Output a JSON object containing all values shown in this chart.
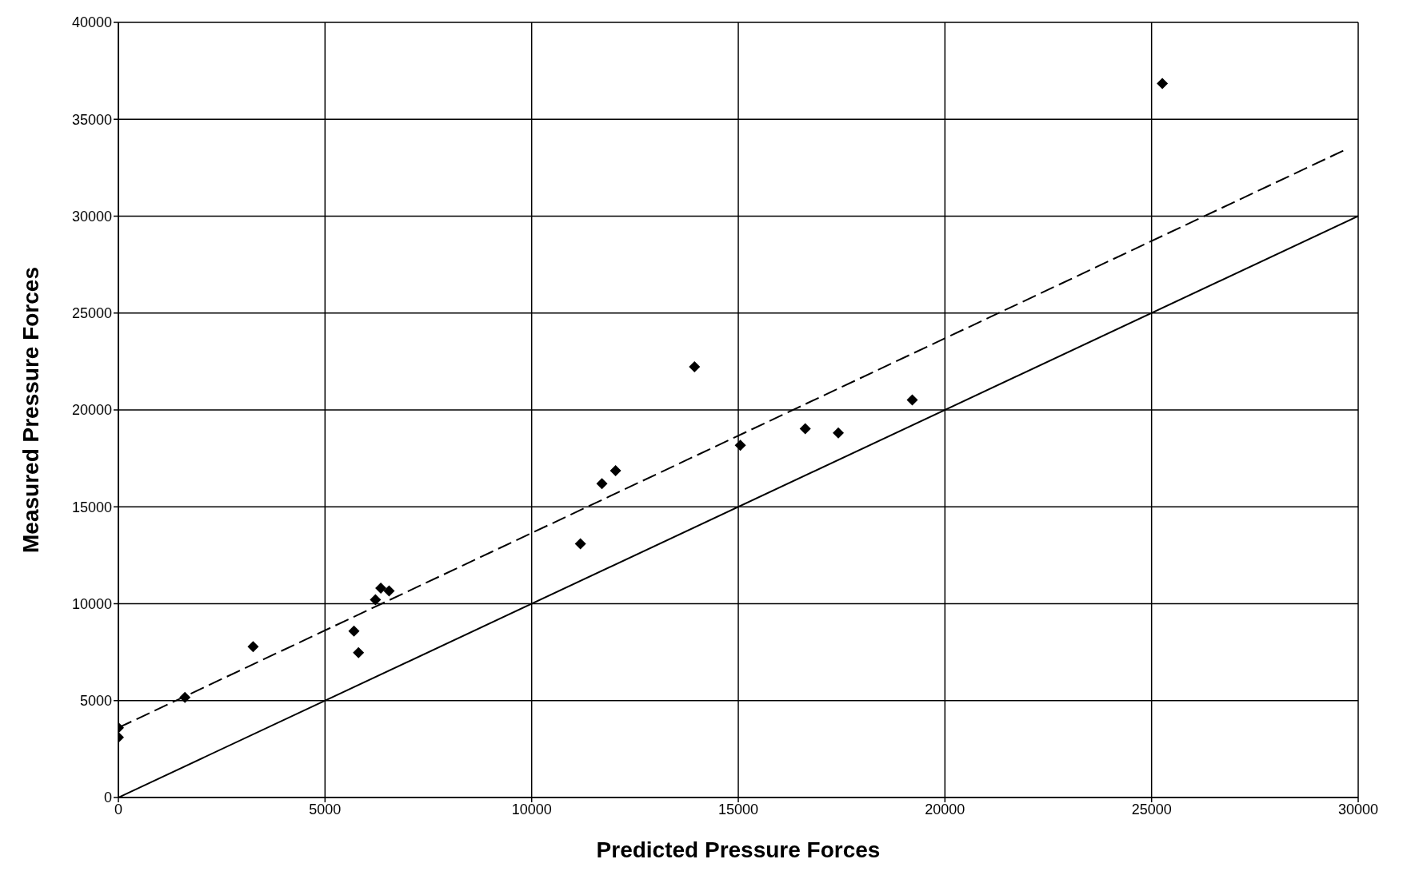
{
  "chart_data": {
    "type": "scatter",
    "xlabel": "Predicted Pressure Forces",
    "ylabel": "Measured Pressure Forces",
    "xlim": [
      0,
      30000
    ],
    "ylim": [
      0,
      40000
    ],
    "xticks": [
      0,
      5000,
      10000,
      15000,
      20000,
      25000,
      30000
    ],
    "yticks": [
      0,
      5000,
      10000,
      15000,
      20000,
      25000,
      30000,
      35000,
      40000
    ],
    "grid": true,
    "legend": false,
    "marker": "diamond",
    "series": [
      {
        "type": "scatter",
        "color": "#000000",
        "x": [
          0,
          0,
          1610,
          3260,
          5700,
          5810,
          6220,
          6350,
          6550,
          11180,
          11700,
          12030,
          13940,
          15050,
          16620,
          17420,
          19210,
          25260
        ],
        "values": [
          3600,
          3100,
          5170,
          7780,
          8590,
          7470,
          10210,
          10800,
          10660,
          13090,
          16200,
          16870,
          22230,
          18180,
          19030,
          18810,
          20520,
          36850
        ]
      },
      {
        "type": "line",
        "color": "#000000",
        "line_style": "dashed",
        "marker": "none",
        "x": [
          0,
          29690
        ],
        "values": [
          3600,
          33430
        ]
      },
      {
        "type": "line",
        "color": "#000000",
        "line_style": "solid",
        "marker": "none",
        "x": [
          0,
          30000
        ],
        "values": [
          0,
          30000
        ]
      }
    ]
  }
}
